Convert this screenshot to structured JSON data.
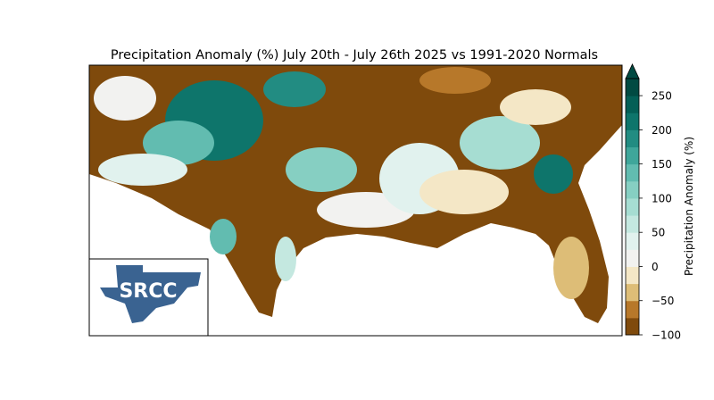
{
  "title": "Precipitation Anomaly (%) July 20th - July 26th 2025 vs 1991-2020 Normals",
  "logo": {
    "text": "SRCC"
  },
  "colorbar": {
    "label": "Precipitation Anomaly (%)",
    "lim": [
      -100,
      275
    ],
    "ticks": [
      {
        "value": -100,
        "label": "−100"
      },
      {
        "value": -50,
        "label": "−50"
      },
      0,
      50,
      100,
      150,
      200,
      250
    ],
    "colors": [
      "#7f4a0c",
      "#b7782a",
      "#ddbd77",
      "#f4e7c6",
      "#f2f2f0",
      "#e1f2ee",
      "#c4e8e0",
      "#a6ddd2",
      "#86cfc2",
      "#62bcb0",
      "#3fa69a",
      "#228c82",
      "#0e756b",
      "#045f56",
      "#014a42"
    ],
    "extend": "max"
  }
}
